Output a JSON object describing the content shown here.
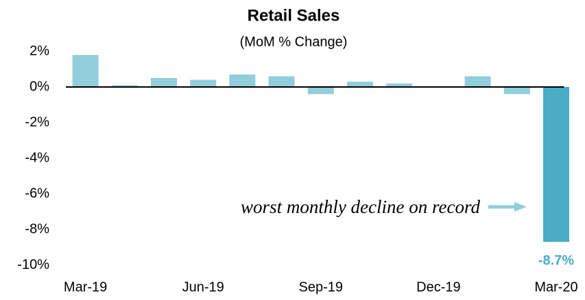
{
  "chart_data": {
    "type": "bar",
    "title": "Retail Sales",
    "subtitle": "(MoM % Change)",
    "categories": [
      "Mar-19",
      null,
      null,
      "Jun-19",
      null,
      null,
      "Sep-19",
      null,
      null,
      "Dec-19",
      null,
      null,
      "Mar-20"
    ],
    "values": [
      1.8,
      0.1,
      0.5,
      0.4,
      0.7,
      0.6,
      -0.4,
      0.3,
      0.2,
      0.0,
      0.6,
      -0.4,
      -8.7
    ],
    "value_labels": [
      null,
      null,
      null,
      null,
      null,
      null,
      null,
      null,
      null,
      null,
      null,
      null,
      "-8.7%"
    ],
    "colors": [
      "#92cddc",
      "#92cddc",
      "#92cddc",
      "#92cddc",
      "#92cddc",
      "#92cddc",
      "#92cddc",
      "#92cddc",
      "#92cddc",
      "#92cddc",
      "#92cddc",
      "#92cddc",
      "#4bacc6"
    ],
    "ylim": [
      -10,
      2
    ],
    "yticks": [
      {
        "value": 2,
        "label": "2%"
      },
      {
        "value": 0,
        "label": "0%"
      },
      {
        "value": -2,
        "label": "-2%"
      },
      {
        "value": -4,
        "label": "-4%"
      },
      {
        "value": -6,
        "label": "-6%"
      },
      {
        "value": -8,
        "label": "-8%"
      },
      {
        "value": -10,
        "label": "-10%"
      }
    ],
    "grid": false,
    "annotation": "worst monthly decline on record"
  }
}
